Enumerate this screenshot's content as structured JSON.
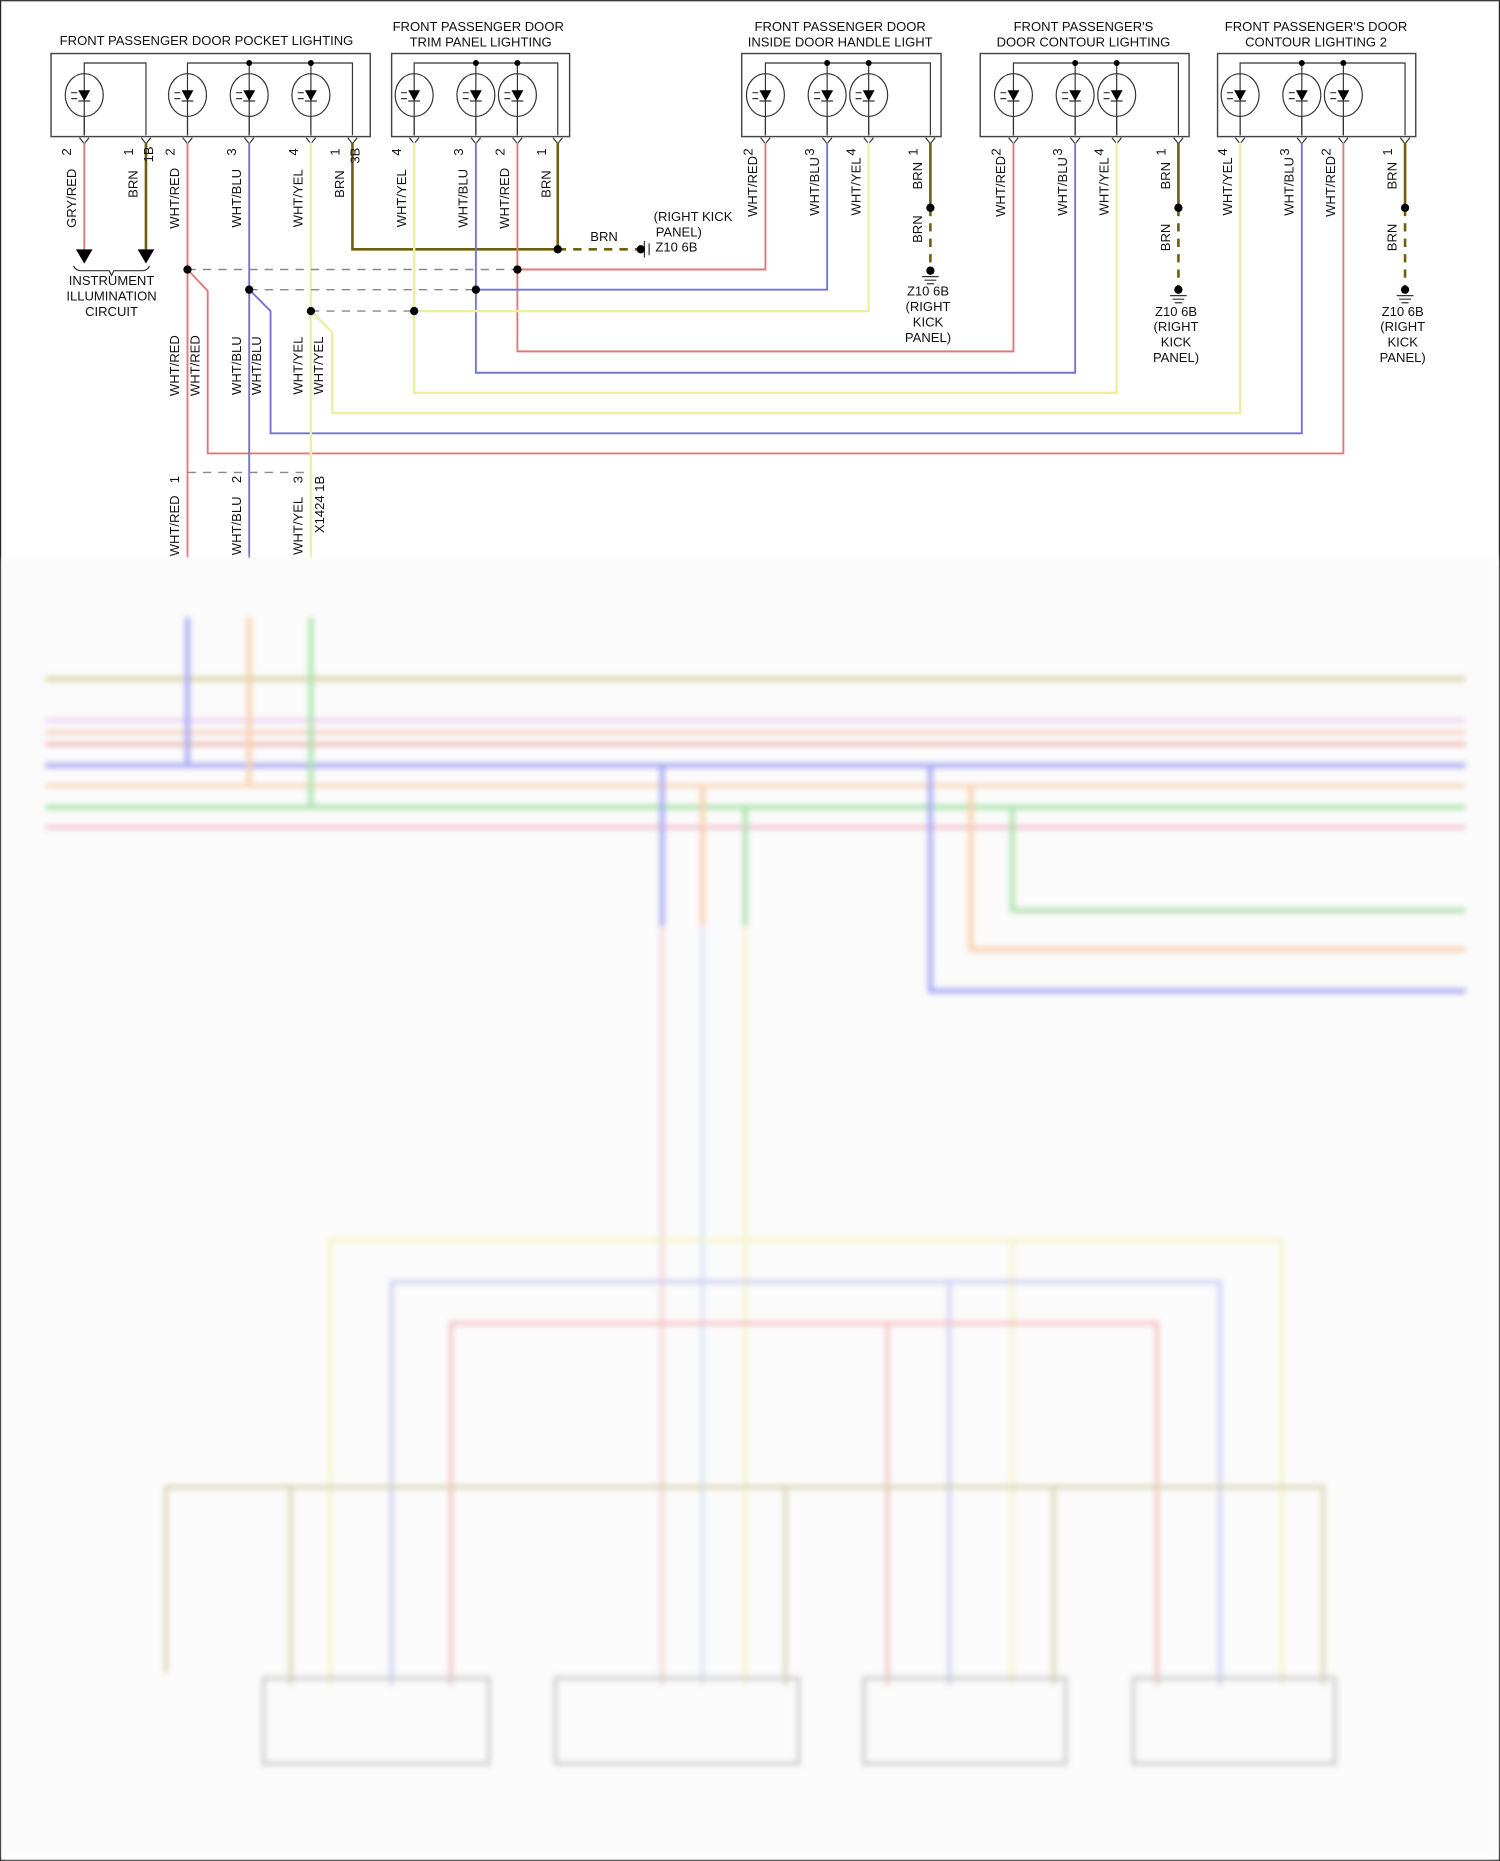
{
  "colors": {
    "wht_red": "#e07a7a",
    "wht_blu": "#7474d6",
    "wht_yel": "#eeeea0",
    "brn": "#6f5e0a"
  },
  "components": [
    {
      "title": [
        "FRONT PASSENGER DOOR POCKET LIGHTING"
      ],
      "pins": [
        "2",
        "1",
        "2",
        "3",
        "4",
        "1"
      ],
      "connectors": [
        "1B",
        "3B"
      ],
      "wires": [
        "GRY/RED",
        "BRN",
        "WHT/RED",
        "WHT/BLU",
        "WHT/YEL",
        "BRN"
      ]
    },
    {
      "title": [
        "FRONT PASSENGER DOOR",
        "TRIM PANEL LIGHTING"
      ],
      "pins": [
        "4",
        "3",
        "2",
        "1"
      ],
      "wires": [
        "WHT/YEL",
        "WHT/BLU",
        "WHT/RED",
        "BRN"
      ]
    },
    {
      "title": [
        "FRONT PASSENGER DOOR",
        "INSIDE DOOR HANDLE LIGHT"
      ],
      "pins": [
        "2",
        "3",
        "4",
        "1"
      ],
      "wires": [
        "WHT/RED",
        "WHT/BLU",
        "WHT/YEL",
        "BRN",
        "BRN"
      ]
    },
    {
      "title": [
        "FRONT PASSENGER'S",
        "DOOR CONTOUR LIGHTING"
      ],
      "pins": [
        "2",
        "3",
        "4",
        "1"
      ],
      "wires": [
        "WHT/RED",
        "WHT/BLU",
        "WHT/YEL",
        "BRN",
        "BRN"
      ]
    },
    {
      "title": [
        "FRONT PASSENGER'S DOOR",
        "CONTOUR LIGHTING 2"
      ],
      "pins": [
        "4",
        "3",
        "2",
        "1"
      ],
      "wires": [
        "WHT/YEL",
        "WHT/BLU",
        "WHT/RED",
        "BRN",
        "BRN"
      ]
    }
  ],
  "instrument_circuit": [
    "INSTRUMENT",
    "ILLUMINATION",
    "CIRCUIT"
  ],
  "splice_ground": {
    "wire": "BRN",
    "label": [
      "(RIGHT KICK",
      "PANEL)",
      "Z10 6B"
    ]
  },
  "ground_label": [
    "Z10 6B",
    "(RIGHT",
    "KICK",
    "PANEL)"
  ],
  "branch_wires": [
    "WHT/RED",
    "WHT/RED",
    "WHT/BLU",
    "WHT/BLU",
    "WHT/YEL",
    "WHT/YEL"
  ],
  "connector_x1424": {
    "name": "X1424 1B",
    "pins": [
      "1",
      "2",
      "3"
    ],
    "wires": [
      "WHT/RED",
      "WHT/BLU",
      "WHT/YEL"
    ]
  }
}
